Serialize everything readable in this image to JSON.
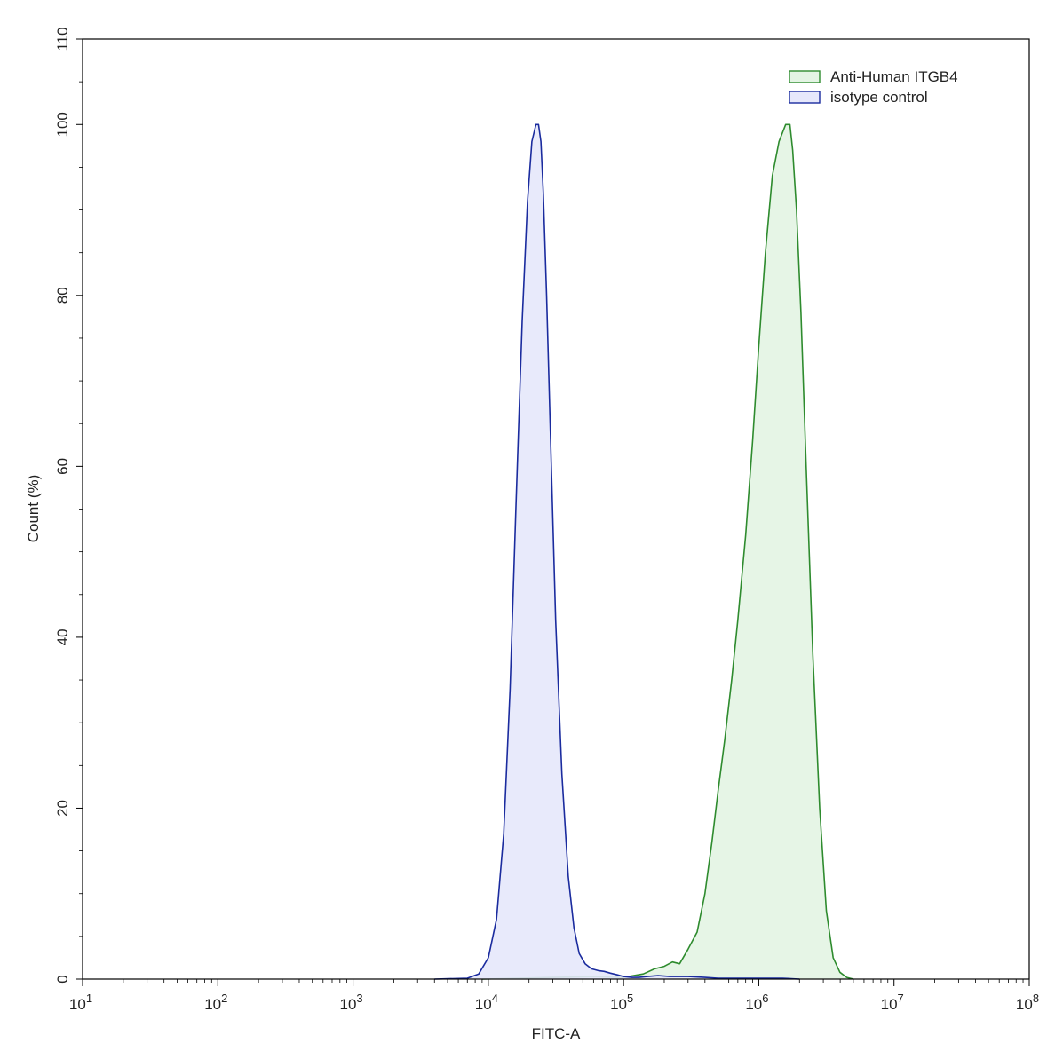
{
  "chart_data": {
    "type": "area",
    "xlabel": "FITC-A",
    "ylabel": "Count  (%)",
    "x_scale": "log",
    "xlim": [
      10,
      100000000
    ],
    "ylim": [
      0,
      110
    ],
    "x_ticks": [
      {
        "value": 10,
        "base": "10",
        "exp": "1"
      },
      {
        "value": 100,
        "base": "10",
        "exp": "2"
      },
      {
        "value": 1000,
        "base": "10",
        "exp": "3"
      },
      {
        "value": 10000,
        "base": "10",
        "exp": "4"
      },
      {
        "value": 100000,
        "base": "10",
        "exp": "5"
      },
      {
        "value": 1000000,
        "base": "10",
        "exp": "6"
      },
      {
        "value": 10000000,
        "base": "10",
        "exp": "7"
      },
      {
        "value": 100000000,
        "base": "10",
        "exp": "8"
      }
    ],
    "y_ticks": [
      0,
      20,
      40,
      60,
      80,
      100,
      110
    ],
    "grid": false,
    "legend_position": "top-right",
    "series": [
      {
        "name": "Anti-Human ITGB4",
        "line_color": "#2e8b2e",
        "fill_color": "#e3f4e3",
        "x": [
          9000,
          30000,
          60000,
          100000,
          140000,
          170000,
          200000,
          230000,
          260000,
          300000,
          350000,
          400000,
          450000,
          500000,
          560000,
          630000,
          700000,
          800000,
          900000,
          1000000,
          1120000,
          1260000,
          1410000,
          1580000,
          1700000,
          1780000,
          1900000,
          2050000,
          2240000,
          2510000,
          2820000,
          3160000,
          3550000,
          3980000,
          4470000,
          5010000
        ],
        "y": [
          0,
          0.2,
          0.3,
          0.2,
          0.6,
          1.2,
          1.5,
          2.0,
          1.8,
          3.5,
          5.5,
          10,
          16,
          22,
          28,
          35,
          42,
          52,
          63,
          74,
          85,
          94,
          98,
          100,
          100,
          97,
          90,
          78,
          60,
          38,
          20,
          8,
          2.5,
          0.8,
          0.2,
          0
        ]
      },
      {
        "name": "isotype control",
        "line_color": "#1a2b9e",
        "fill_color": "#e6e8fb",
        "x": [
          4000,
          7000,
          8500,
          10000,
          11500,
          13000,
          14500,
          16000,
          17800,
          19500,
          21000,
          22500,
          23500,
          24500,
          25500,
          27000,
          29000,
          31500,
          35000,
          39000,
          43000,
          47000,
          52000,
          58000,
          65000,
          72000,
          80000,
          90000,
          100000,
          115000,
          130000,
          150000,
          180000,
          220000,
          300000,
          400000,
          500000,
          700000,
          1000000,
          1500000,
          2000000
        ],
        "y": [
          0,
          0.1,
          0.6,
          2.5,
          7,
          17,
          34,
          55,
          77,
          91,
          98,
          100,
          100,
          98,
          92,
          80,
          62,
          42,
          24,
          12,
          6,
          3,
          1.8,
          1.2,
          1.0,
          0.9,
          0.7,
          0.5,
          0.3,
          0.2,
          0.2,
          0.3,
          0.4,
          0.3,
          0.3,
          0.2,
          0.1,
          0.1,
          0.1,
          0.1,
          0
        ]
      }
    ]
  }
}
